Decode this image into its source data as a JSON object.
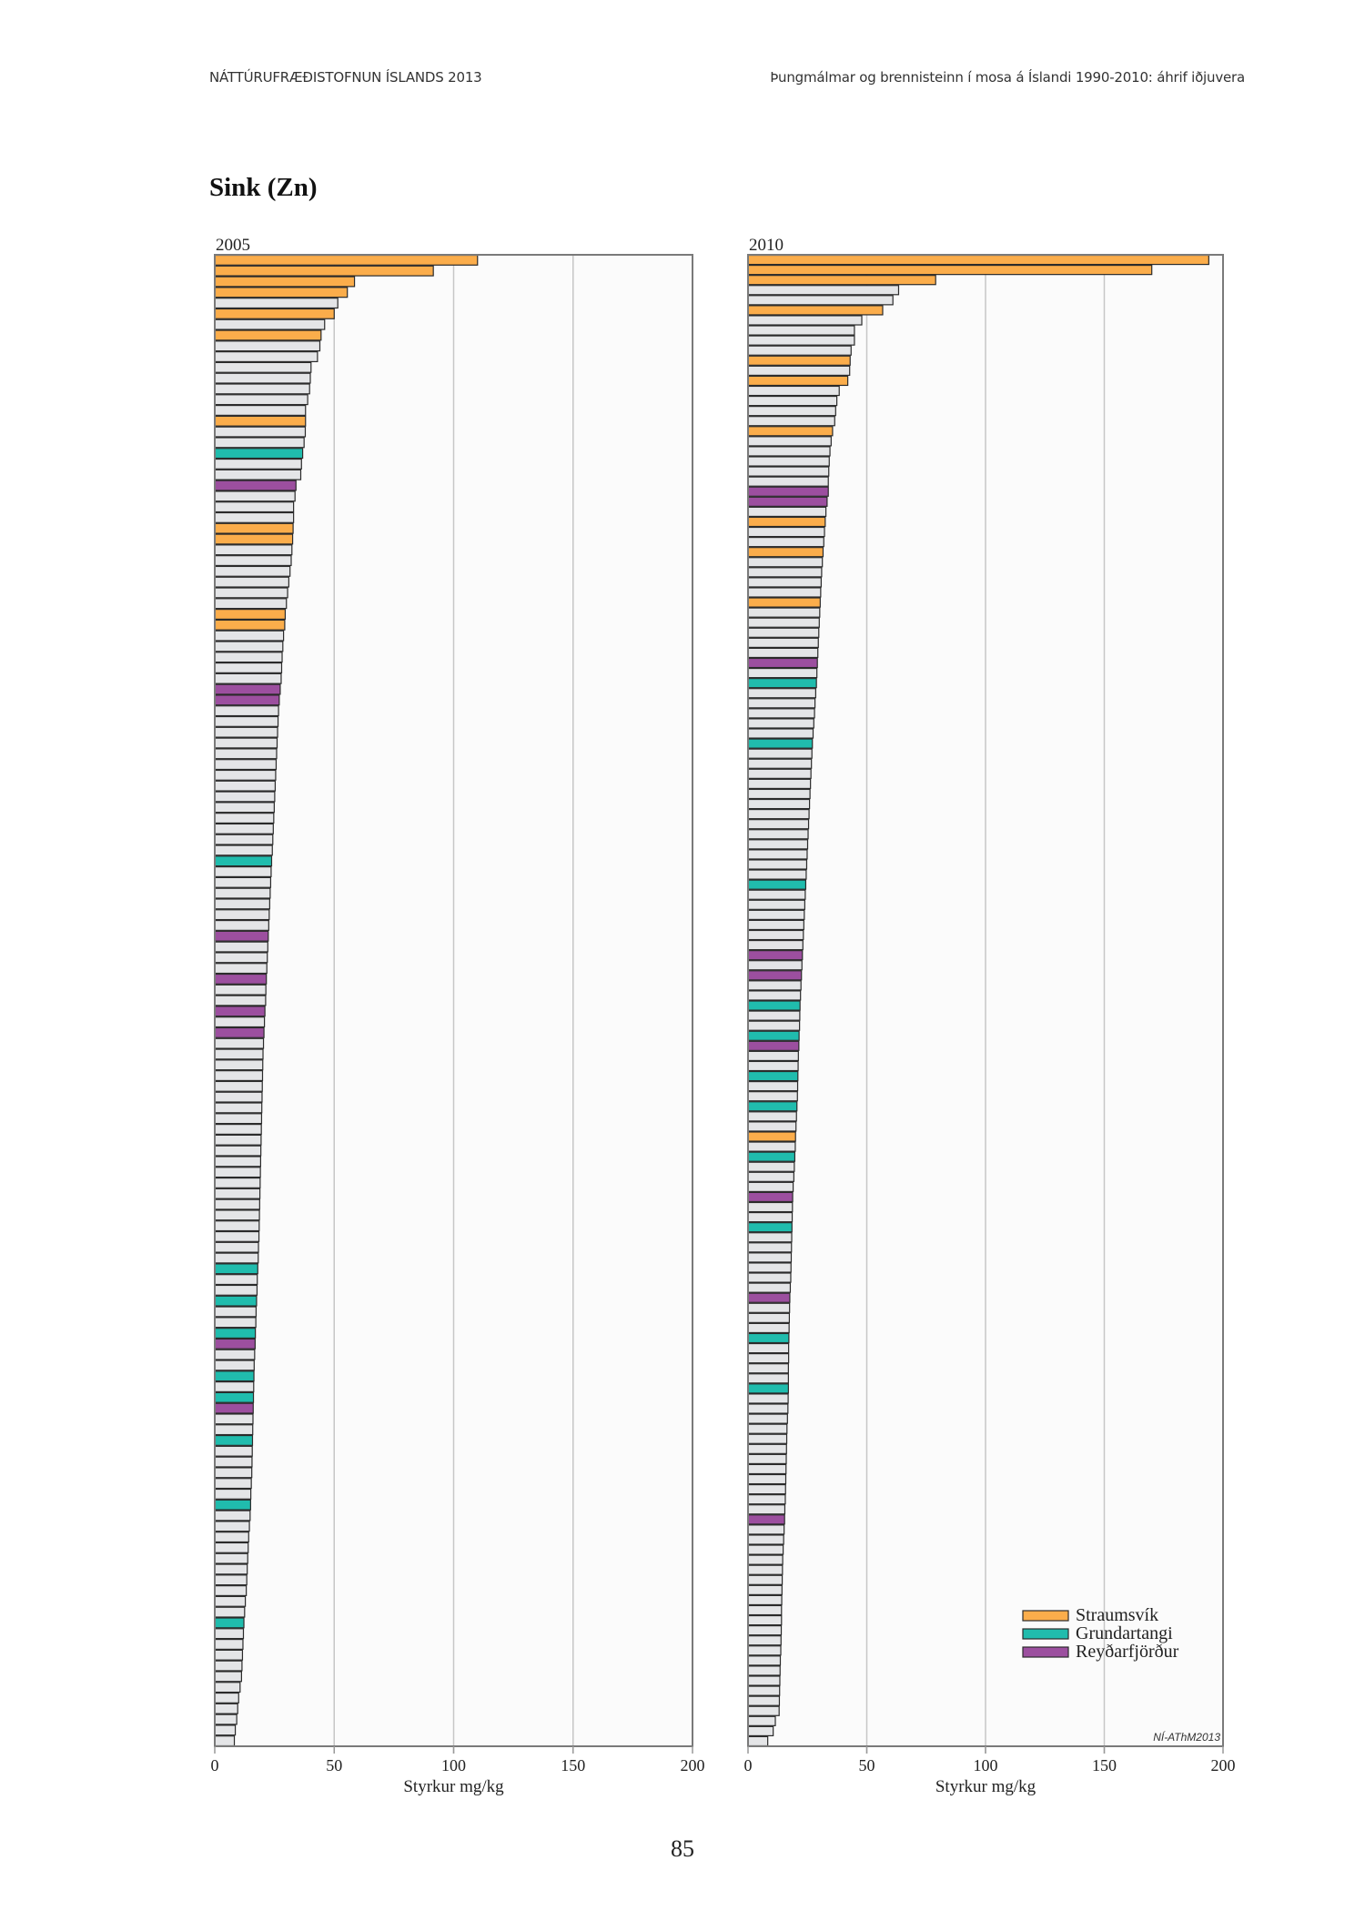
{
  "header": {
    "left": "NÁTTÚRUFRÆÐISTOFNUN ÍSLANDS 2013",
    "right": "Þungmálmar og brennisteinn í mosa á Íslandi 1990-2010: áhrif iðjuvera"
  },
  "title": "Sink (Zn)",
  "page_number": "85",
  "colors": {
    "Straumsvík": "#fbad4b",
    "Grundartangi": "#20bcad",
    "Reyðarfjörður": "#9c4f9f",
    "other": "#e4e5e7"
  },
  "chart_data": [
    {
      "type": "bar",
      "orientation": "horizontal",
      "title": "2005",
      "xlabel": "Styrkur mg/kg",
      "xlim": [
        0,
        200
      ],
      "xticks": [
        "0",
        "50",
        "100",
        "150",
        "200"
      ],
      "grid": true,
      "values": [
        110,
        91.5,
        58.5,
        55.5,
        51.5,
        50,
        46,
        44.5,
        44,
        43,
        40.3,
        40,
        39.7,
        38.9,
        38,
        38,
        37.9,
        37.4,
        36.8,
        36.3,
        36,
        34,
        33.6,
        33,
        33,
        32.8,
        32.6,
        32.3,
        32,
        31.5,
        31,
        30.5,
        30,
        29.5,
        29.3,
        28.8,
        28.5,
        28.2,
        28,
        27.8,
        27.4,
        27,
        26.7,
        26.5,
        26.3,
        26.1,
        25.9,
        25.7,
        25.5,
        25.3,
        25.1,
        24.9,
        24.7,
        24.5,
        24.3,
        24.1,
        23.8,
        23.6,
        23.4,
        23.2,
        23,
        22.8,
        22.6,
        22.4,
        22.2,
        22,
        21.8,
        21.6,
        21.4,
        21.3,
        21,
        20.8,
        20.6,
        20.4,
        20.2,
        20.1,
        20,
        19.9,
        19.8,
        19.7,
        19.6,
        19.5,
        19.4,
        19.3,
        19.2,
        19.1,
        19,
        18.9,
        18.8,
        18.7,
        18.6,
        18.5,
        18.3,
        18.2,
        18,
        17.8,
        17.7,
        17.5,
        17.3,
        17.2,
        17,
        16.9,
        16.7,
        16.5,
        16.4,
        16.3,
        16.2,
        16.1,
        16,
        15.9,
        15.8,
        15.7,
        15.6,
        15.5,
        15.3,
        15.1,
        15,
        14.8,
        14.5,
        14.2,
        14,
        13.8,
        13.6,
        13.4,
        13.2,
        12.8,
        12.5,
        12.2,
        12,
        11.8,
        11.6,
        11.4,
        11.2,
        10.6,
        10,
        9.6,
        9.2,
        8.6,
        8.2
      ],
      "groups": {
        "Straumsvík": [
          1,
          2,
          3,
          4,
          6,
          8,
          16,
          26,
          27,
          34,
          35
        ],
        "Grundartangi": [
          19,
          57,
          95,
          98,
          101,
          105,
          107,
          111,
          117,
          128
        ],
        "Reyðarfjörður": [
          22,
          41,
          42,
          64,
          68,
          71,
          73,
          102,
          108
        ]
      }
    },
    {
      "type": "bar",
      "orientation": "horizontal",
      "title": "2010",
      "xlabel": "Styrkur mg/kg",
      "xlim": [
        0,
        200
      ],
      "xticks": [
        "0",
        "50",
        "100",
        "150",
        "200"
      ],
      "grid": true,
      "legend": [
        "Straumsvík",
        "Grundartangi",
        "Reyðarfjörður"
      ],
      "legend_position": "bottom-right",
      "annotation": "NÍ-AThM2013",
      "values": [
        194,
        170,
        79,
        63.4,
        61,
        56.7,
        47.9,
        44.8,
        44.8,
        43.4,
        43,
        42.8,
        42,
        38.4,
        37.4,
        36.9,
        36.5,
        35.6,
        35,
        34.5,
        34.2,
        34,
        33.8,
        33.8,
        33.3,
        32.8,
        32.5,
        32.2,
        31.9,
        31.6,
        31.3,
        31,
        30.8,
        30.6,
        30.4,
        30.2,
        30,
        29.8,
        29.6,
        29.4,
        29.2,
        29,
        28.8,
        28.5,
        28.2,
        28,
        27.7,
        27.4,
        27.1,
        26.9,
        26.7,
        26.5,
        26.3,
        26.1,
        25.9,
        25.7,
        25.5,
        25.3,
        25.1,
        24.9,
        24.7,
        24.5,
        24.3,
        24.1,
        23.9,
        23.7,
        23.5,
        23.3,
        23.1,
        22.9,
        22.7,
        22.5,
        22.3,
        22.1,
        21.9,
        21.8,
        21.7,
        21.5,
        21.4,
        21.2,
        21.1,
        21,
        20.9,
        20.8,
        20.6,
        20.4,
        20.2,
        20,
        19.9,
        19.7,
        19.5,
        19.3,
        19,
        18.8,
        18.7,
        18.6,
        18.5,
        18.4,
        18.3,
        18.2,
        18.1,
        18,
        17.8,
        17.6,
        17.5,
        17.4,
        17.3,
        17.2,
        17.1,
        17.1,
        17,
        17,
        17,
        16.9,
        16.8,
        16.6,
        16.4,
        16.3,
        16.2,
        16.1,
        16,
        15.9,
        15.8,
        15.7,
        15.5,
        15.4,
        15.2,
        15,
        14.8,
        14.6,
        14.5,
        14.4,
        14.3,
        14.2,
        14.1,
        14.1,
        14,
        13.9,
        13.8,
        13.6,
        13.5,
        13.4,
        13.3,
        13.2,
        13.1,
        11.5,
        10.6,
        8.3
      ],
      "groups": {
        "Straumsvík": [
          1,
          2,
          3,
          6,
          11,
          13,
          18,
          27,
          30,
          35,
          88
        ],
        "Grundartangi": [
          43,
          49,
          63,
          75,
          78,
          82,
          85,
          90,
          97,
          108,
          113
        ],
        "Reyðarfjörður": [
          24,
          25,
          41,
          70,
          72,
          79,
          94,
          104,
          126
        ]
      }
    }
  ]
}
